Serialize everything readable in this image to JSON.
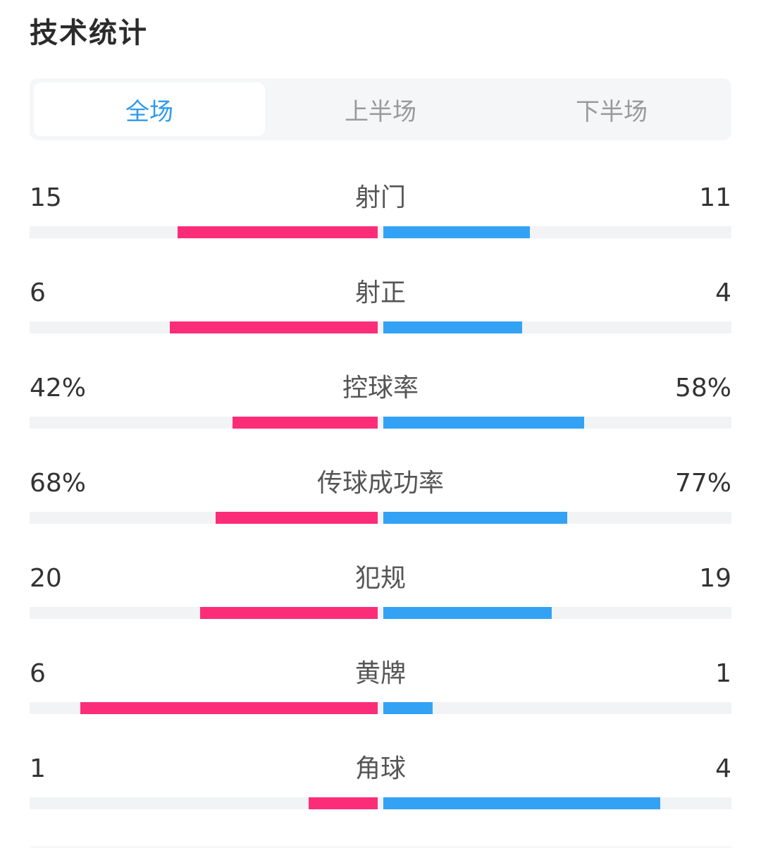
{
  "header": {
    "title": "技术统计"
  },
  "tabs": [
    {
      "label": "全场",
      "active": true
    },
    {
      "label": "上半场",
      "active": false
    },
    {
      "label": "下半场",
      "active": false
    }
  ],
  "colors": {
    "home": "#fb2d78",
    "away": "#33a2f5",
    "active_tab": "#2f9bf0"
  },
  "stats": [
    {
      "label": "射门",
      "home": "15",
      "away": "11",
      "home_ratio": 0.574,
      "away_ratio": 0.421
    },
    {
      "label": "射正",
      "home": "6",
      "away": "4",
      "home_ratio": 0.598,
      "away_ratio": 0.398
    },
    {
      "label": "控球率",
      "home": "42%",
      "away": "58%",
      "home_ratio": 0.418,
      "away_ratio": 0.576
    },
    {
      "label": "传球成功率",
      "home": "68%",
      "away": "77%",
      "home_ratio": 0.466,
      "away_ratio": 0.528
    },
    {
      "label": "犯规",
      "home": "20",
      "away": "19",
      "home_ratio": 0.51,
      "away_ratio": 0.484
    },
    {
      "label": "黄牌",
      "home": "6",
      "away": "1",
      "home_ratio": 0.855,
      "away_ratio": 0.141
    },
    {
      "label": "角球",
      "home": "1",
      "away": "4",
      "home_ratio": 0.199,
      "away_ratio": 0.795
    }
  ]
}
